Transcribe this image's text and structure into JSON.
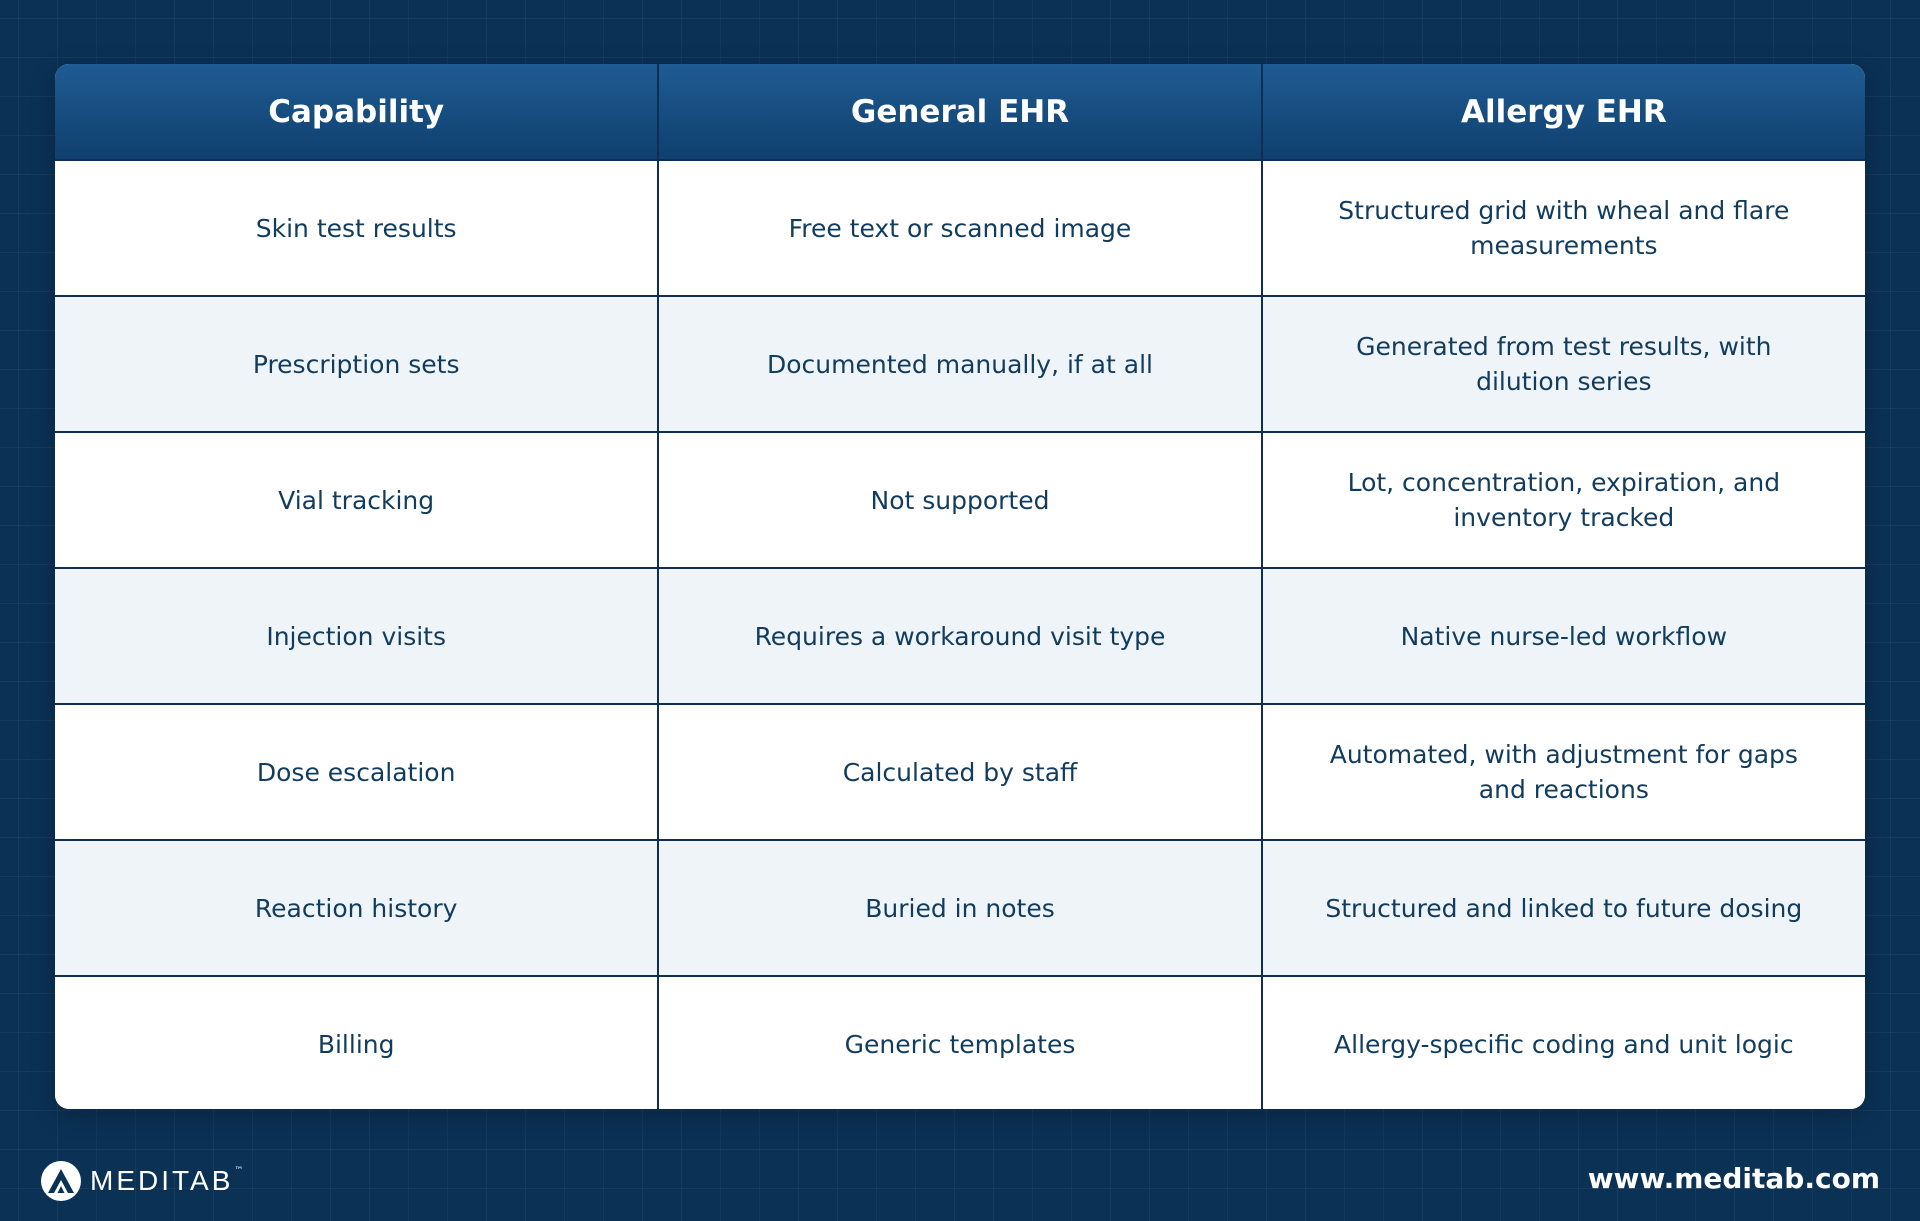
{
  "table": {
    "headers": [
      "Capability",
      "General EHR",
      "Allergy EHR"
    ],
    "rows": [
      {
        "capability": "Skin test results",
        "general": "Free text or scanned image",
        "allergy": "Structured grid with wheal and flare measurements"
      },
      {
        "capability": "Prescription sets",
        "general": "Documented manually, if at all",
        "allergy": "Generated from test results, with dilution series"
      },
      {
        "capability": "Vial tracking",
        "general": "Not supported",
        "allergy": "Lot, concentration, expiration, and inventory tracked"
      },
      {
        "capability": "Injection visits",
        "general": "Requires a workaround visit type",
        "allergy": "Native nurse-led workflow"
      },
      {
        "capability": "Dose escalation",
        "general": "Calculated by staff",
        "allergy": "Automated, with adjustment for gaps and reactions"
      },
      {
        "capability": "Reaction history",
        "general": "Buried in notes",
        "allergy": "Structured and linked to future dosing"
      },
      {
        "capability": "Billing",
        "general": "Generic templates",
        "allergy": "Allergy-specific coding and unit logic"
      }
    ]
  },
  "footer": {
    "brand_name": "MEDITAB",
    "brand_tm": "™",
    "brand_icon": "meditab-logo-icon",
    "website": "www.meditab.com"
  },
  "colors": {
    "background": "#0b3155",
    "header_top": "#1f5c93",
    "header_bottom": "#0f3f6e",
    "row_alt": "#eff4f8",
    "text": "#123c5e"
  }
}
